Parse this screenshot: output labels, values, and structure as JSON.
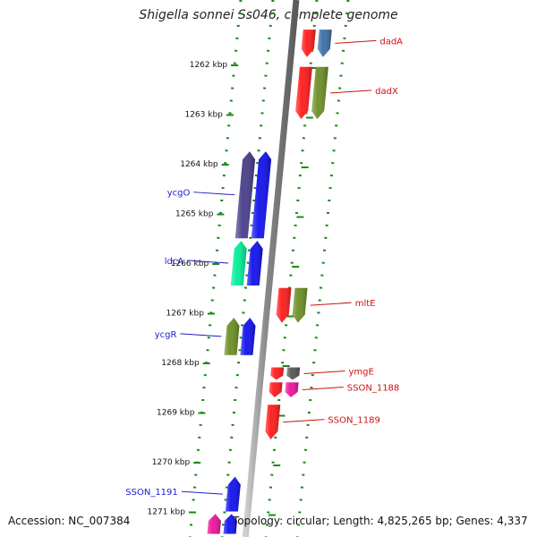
{
  "title": "Shigella sonnei Ss046, complete genome",
  "footer": {
    "accession": "Accession: NC_007384",
    "topology": "Topology: circular; Length: 4,825,265 bp; Genes: 4,337"
  },
  "colors": {
    "backbone": "#808080",
    "tick": "#1b8a1b",
    "forward_label": "#1d1dcc",
    "reverse_label": "#cc1111",
    "tick_label": "#111111"
  },
  "ticks": [
    {
      "label": "1262 kbp",
      "kbp": 1262
    },
    {
      "label": "1263 kbp",
      "kbp": 1263
    },
    {
      "label": "1264 kbp",
      "kbp": 1264
    },
    {
      "label": "1265 kbp",
      "kbp": 1265
    },
    {
      "label": "1266 kbp",
      "kbp": 1266
    },
    {
      "label": "1267 kbp",
      "kbp": 1267
    },
    {
      "label": "1268 kbp",
      "kbp": 1268
    },
    {
      "label": "1269 kbp",
      "kbp": 1269
    },
    {
      "label": "1270 kbp",
      "kbp": 1270
    },
    {
      "label": "1271 kbp",
      "kbp": 1271
    }
  ],
  "features": [
    {
      "strand": "-",
      "lane": "inner",
      "start": 1261.3,
      "end": 1261.85,
      "color": "#ff1a1a",
      "label": ""
    },
    {
      "strand": "-",
      "lane": "outer",
      "start": 1261.3,
      "end": 1261.85,
      "color": "#3b6fa6",
      "label": "dadA"
    },
    {
      "strand": "-",
      "lane": "inner",
      "start": 1262.05,
      "end": 1263.1,
      "color": "#ff1a1a",
      "label": ""
    },
    {
      "strand": "-",
      "lane": "outer",
      "start": 1262.05,
      "end": 1263.1,
      "color": "#6b8e23",
      "label": "dadX"
    },
    {
      "strand": "+",
      "lane": "outer",
      "start": 1263.75,
      "end": 1265.5,
      "color": "#483d8b",
      "label": "ycgO"
    },
    {
      "strand": "+",
      "lane": "inner",
      "start": 1263.75,
      "end": 1265.5,
      "color": "#1010ee",
      "label": ""
    },
    {
      "strand": "+",
      "lane": "outer",
      "start": 1265.55,
      "end": 1266.45,
      "color": "#00ee99",
      "label": "ldcA"
    },
    {
      "strand": "+",
      "lane": "inner",
      "start": 1265.55,
      "end": 1266.45,
      "color": "#1010ee",
      "label": ""
    },
    {
      "strand": "-",
      "lane": "inner",
      "start": 1266.5,
      "end": 1267.2,
      "color": "#ff1a1a",
      "label": ""
    },
    {
      "strand": "-",
      "lane": "outer",
      "start": 1266.5,
      "end": 1267.2,
      "color": "#6b8e23",
      "label": "mltE"
    },
    {
      "strand": "+",
      "lane": "outer",
      "start": 1267.1,
      "end": 1267.85,
      "color": "#6b8e23",
      "label": "ycgR"
    },
    {
      "strand": "+",
      "lane": "inner",
      "start": 1267.1,
      "end": 1267.85,
      "color": "#1010ee",
      "label": ""
    },
    {
      "strand": "-",
      "lane": "inner",
      "start": 1268.1,
      "end": 1268.35,
      "color": "#ff1a1a",
      "label": ""
    },
    {
      "strand": "-",
      "lane": "outer",
      "start": 1268.1,
      "end": 1268.35,
      "color": "#555555",
      "label": "ymgE"
    },
    {
      "strand": "-",
      "lane": "inner",
      "start": 1268.4,
      "end": 1268.7,
      "color": "#ff1a1a",
      "label": ""
    },
    {
      "strand": "-",
      "lane": "outer",
      "start": 1268.4,
      "end": 1268.7,
      "color": "#ee1199",
      "label": "SSON_1188"
    },
    {
      "strand": "-",
      "lane": "inner",
      "start": 1268.85,
      "end": 1269.55,
      "color": "#ff1a1a",
      "label": "SSON_1189"
    },
    {
      "strand": "+",
      "lane": "inner",
      "start": 1270.3,
      "end": 1271.0,
      "color": "#1010ee",
      "label": "SSON_1191"
    },
    {
      "strand": "+",
      "lane": "outer",
      "start": 1271.05,
      "end": 1271.45,
      "color": "#ee1199",
      "label": ""
    },
    {
      "strand": "+",
      "lane": "inner",
      "start": 1271.05,
      "end": 1271.45,
      "color": "#1010ee",
      "label": ""
    }
  ]
}
